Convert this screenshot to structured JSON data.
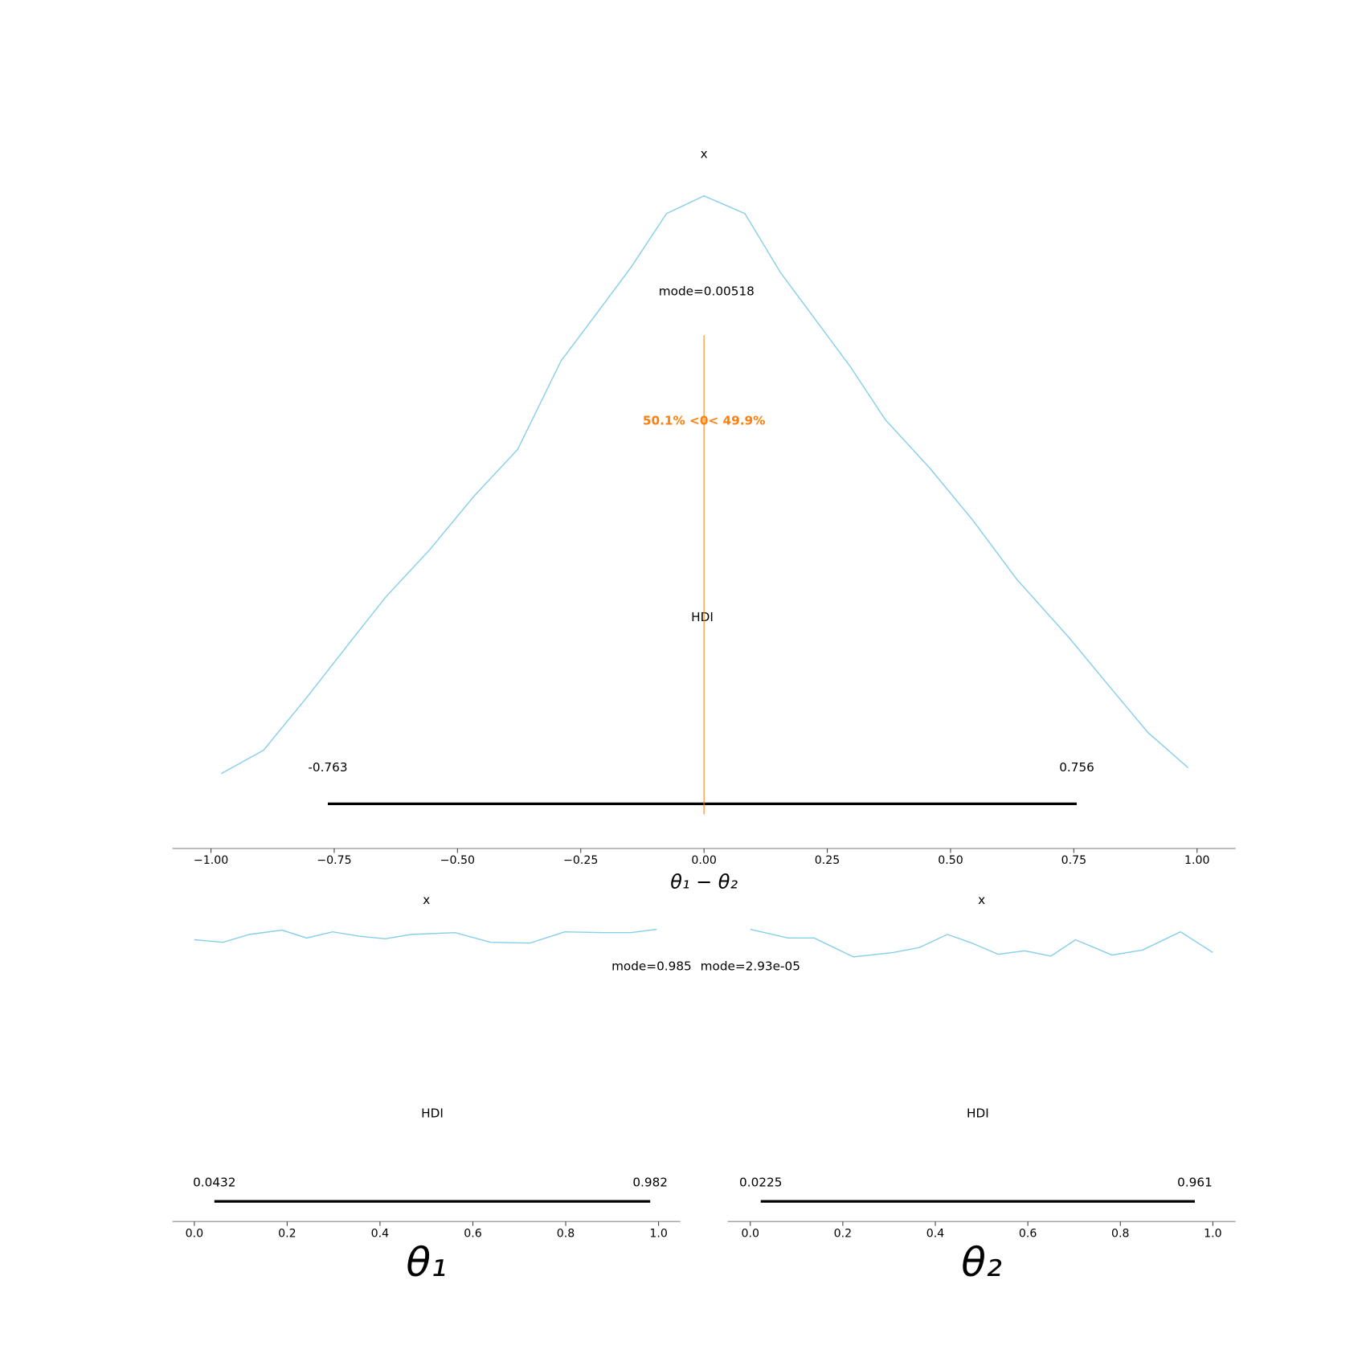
{
  "chart_data": [
    {
      "type": "density",
      "title": "x",
      "xlabel": "θ₁ − θ₂",
      "color": "#87ceeb",
      "x": [
        -0.979,
        -0.893,
        -0.805,
        -0.716,
        -0.645,
        -0.556,
        -0.467,
        -0.378,
        -0.29,
        -0.218,
        -0.147,
        -0.076,
        0,
        0.083,
        0.155,
        0.226,
        0.297,
        0.368,
        0.456,
        0.545,
        0.634,
        0.741,
        0.83,
        0.9,
        0.982
      ],
      "values": [
        0.02,
        0.06,
        0.15,
        0.245,
        0.32,
        0.4,
        0.49,
        0.57,
        0.72,
        0.8,
        0.88,
        0.97,
        1.0,
        0.97,
        0.87,
        0.79,
        0.71,
        0.62,
        0.54,
        0.45,
        0.35,
        0.25,
        0.16,
        0.09,
        0.03
      ],
      "xlim": [
        -1.078,
        1.078
      ],
      "ylim": [
        -0.107,
        1.05
      ],
      "xticks": [
        {
          "value": -1,
          "label": "−1.00"
        },
        {
          "value": -0.75,
          "label": "−0.75"
        },
        {
          "value": -0.5,
          "label": "−0.50"
        },
        {
          "value": -0.25,
          "label": "−0.25"
        },
        {
          "value": 0,
          "label": "0.00"
        },
        {
          "value": 0.25,
          "label": "0.25"
        },
        {
          "value": 0.5,
          "label": "0.50"
        },
        {
          "value": 0.75,
          "label": "0.75"
        },
        {
          "value": 1,
          "label": "1.00"
        }
      ],
      "mode": 0.00518,
      "mode_label": "mode=0.00518",
      "hdi": [
        -0.763,
        0.756
      ],
      "hdi_label": "HDI",
      "ref_val": 0,
      "ref_label": "50.1% <0< 49.9%",
      "ref_color": "#ff7f0e"
    },
    {
      "type": "density",
      "title": "x",
      "xlabel": "θ₁",
      "color": "#87ceeb",
      "x": [
        0,
        0.062,
        0.119,
        0.189,
        0.242,
        0.298,
        0.355,
        0.411,
        0.468,
        0.562,
        0.638,
        0.723,
        0.798,
        0.883,
        0.94,
        0.996
      ],
      "values": [
        0.986,
        0.976,
        1.007,
        1.024,
        0.993,
        1.017,
        1.0,
        0.99,
        1.007,
        1.014,
        0.976,
        0.973,
        1.017,
        1.014,
        1.014,
        1.027
      ],
      "xlim": [
        -0.047,
        1.047
      ],
      "ylim": [
        -0.118,
        1.1
      ],
      "xticks": [
        {
          "value": 0,
          "label": "0.0"
        },
        0.2,
        0.4,
        0.6,
        0.8,
        {
          "value": 1,
          "label": "1.0"
        }
      ],
      "mode": 0.985,
      "mode_label": "mode=0.985",
      "hdi": [
        0.0432,
        0.982
      ],
      "hdi_label": "HDI"
    },
    {
      "type": "density",
      "title": "x",
      "xlabel": "θ₂",
      "color": "#87ceeb",
      "x": [
        0,
        0.081,
        0.138,
        0.223,
        0.309,
        0.366,
        0.426,
        0.479,
        0.536,
        0.593,
        0.65,
        0.703,
        0.782,
        0.848,
        0.93,
        1.0
      ],
      "values": [
        1.027,
        0.993,
        0.993,
        0.919,
        0.936,
        0.956,
        1.007,
        0.973,
        0.929,
        0.943,
        0.922,
        0.986,
        0.926,
        0.946,
        1.017,
        0.936
      ],
      "xlim": [
        -0.049,
        1.049
      ],
      "ylim": [
        -0.118,
        1.1
      ],
      "xticks": [
        {
          "value": 0,
          "label": "0.0"
        },
        0.2,
        0.4,
        0.6,
        0.8,
        {
          "value": 1,
          "label": "1.0"
        }
      ],
      "mode": 2.93e-05,
      "mode_label": "mode=2.93e-05",
      "hdi": [
        0.0225,
        0.961
      ],
      "hdi_label": "HDI"
    }
  ]
}
